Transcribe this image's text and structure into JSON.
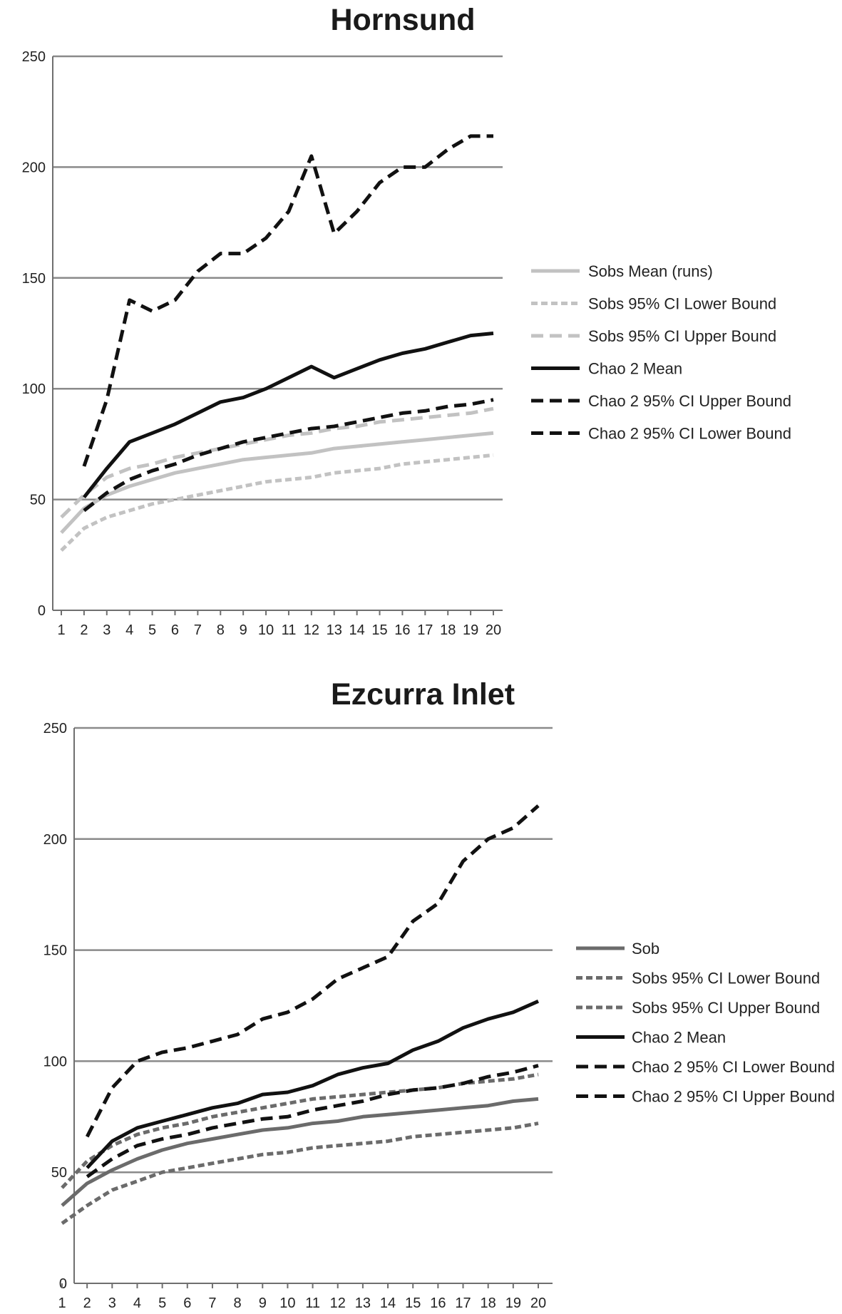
{
  "chart_data": [
    {
      "type": "line",
      "title": "Hornsund",
      "x": [
        1,
        2,
        3,
        4,
        5,
        6,
        7,
        8,
        9,
        10,
        11,
        12,
        13,
        14,
        15,
        16,
        17,
        18,
        19,
        20
      ],
      "x_tick_labels": [
        "1",
        "2",
        "3",
        "4",
        "5",
        "6",
        "7",
        "8",
        "9",
        "10",
        "11",
        "12",
        "13",
        "14",
        "15",
        "16",
        "17",
        "18",
        "19",
        "20"
      ],
      "ylim": [
        0,
        250
      ],
      "y_ticks": [
        0,
        50,
        100,
        150,
        200,
        250
      ],
      "grid": true,
      "legend_position": "right",
      "series": [
        {
          "name": "Sobs Mean (runs)",
          "color": "#c2c2c2",
          "dash": "solid",
          "values": [
            35,
            46,
            52,
            56,
            59,
            62,
            64,
            66,
            68,
            69,
            70,
            71,
            73,
            74,
            75,
            76,
            77,
            78,
            79,
            80
          ]
        },
        {
          "name": "Sobs 95% CI Lower Bound",
          "color": "#c2c2c2",
          "dash": "short",
          "values": [
            27,
            37,
            42,
            45,
            48,
            50,
            52,
            54,
            56,
            58,
            59,
            60,
            62,
            63,
            64,
            66,
            67,
            68,
            69,
            70
          ]
        },
        {
          "name": "Sobs 95% CI Upper Bound",
          "color": "#c2c2c2",
          "dash": "long",
          "values": [
            42,
            52,
            60,
            64,
            66,
            69,
            71,
            73,
            75,
            77,
            79,
            80,
            82,
            83,
            85,
            86,
            87,
            88,
            89,
            91
          ]
        },
        {
          "name": "Chao 2 Mean",
          "color": "#111111",
          "dash": "solid",
          "values": [
            null,
            51,
            64,
            76,
            80,
            84,
            89,
            94,
            96,
            100,
            105,
            110,
            105,
            109,
            113,
            116,
            118,
            121,
            124,
            125
          ]
        },
        {
          "name": "Chao 2 95% CI Upper Bound",
          "color": "#111111",
          "dash": "long",
          "values": [
            null,
            65,
            95,
            140,
            135,
            140,
            153,
            161,
            161,
            168,
            180,
            205,
            170,
            180,
            193,
            200,
            200,
            208,
            214,
            214
          ]
        },
        {
          "name": "Chao 2 95% CI Lower Bound",
          "color": "#111111",
          "dash": "long",
          "values": [
            null,
            45,
            53,
            59,
            63,
            66,
            70,
            73,
            76,
            78,
            80,
            82,
            83,
            85,
            87,
            89,
            90,
            92,
            93,
            95
          ]
        }
      ]
    },
    {
      "type": "line",
      "title": "Ezcurra Inlet",
      "x": [
        1,
        2,
        3,
        4,
        5,
        6,
        7,
        8,
        9,
        10,
        11,
        12,
        13,
        14,
        15,
        16,
        17,
        18,
        19,
        20
      ],
      "x_tick_labels": [
        "1",
        "2",
        "3",
        "4",
        "5",
        "6",
        "7",
        "8",
        "9",
        "10",
        "11",
        "12",
        "13",
        "14",
        "15",
        "16",
        "17",
        "18",
        "19",
        "20"
      ],
      "ylim": [
        0,
        250
      ],
      "y_ticks": [
        0,
        50,
        100,
        150,
        200,
        250
      ],
      "grid": true,
      "legend_position": "right",
      "series": [
        {
          "name": "Sob",
          "color": "#6b6b6b",
          "dash": "solid",
          "values": [
            35,
            45,
            51,
            56,
            60,
            63,
            65,
            67,
            69,
            70,
            72,
            73,
            75,
            76,
            77,
            78,
            79,
            80,
            82,
            83
          ]
        },
        {
          "name": "Sobs 95% CI Lower Bound",
          "color": "#6b6b6b",
          "dash": "short",
          "values": [
            27,
            35,
            42,
            46,
            50,
            52,
            54,
            56,
            58,
            59,
            61,
            62,
            63,
            64,
            66,
            67,
            68,
            69,
            70,
            72
          ]
        },
        {
          "name": "Sobs 95% CI Upper Bound",
          "color": "#6b6b6b",
          "dash": "short",
          "values": [
            43,
            55,
            62,
            67,
            70,
            72,
            75,
            77,
            79,
            81,
            83,
            84,
            85,
            86,
            87,
            88,
            90,
            91,
            92,
            94
          ]
        },
        {
          "name": "Chao 2 Mean",
          "color": "#111111",
          "dash": "solid",
          "values": [
            null,
            52,
            64,
            70,
            73,
            76,
            79,
            81,
            85,
            86,
            89,
            94,
            97,
            99,
            105,
            109,
            115,
            119,
            122,
            127
          ]
        },
        {
          "name": "Chao 2 95% CI Lower Bound",
          "color": "#111111",
          "dash": "long",
          "values": [
            null,
            48,
            56,
            62,
            65,
            67,
            70,
            72,
            74,
            75,
            78,
            80,
            82,
            85,
            87,
            88,
            90,
            93,
            95,
            98
          ]
        },
        {
          "name": "Chao 2 95% CI Upper Bound",
          "color": "#111111",
          "dash": "long",
          "values": [
            null,
            66,
            88,
            100,
            104,
            106,
            109,
            112,
            119,
            122,
            128,
            137,
            142,
            147,
            163,
            171,
            190,
            200,
            205,
            215
          ]
        }
      ]
    }
  ]
}
